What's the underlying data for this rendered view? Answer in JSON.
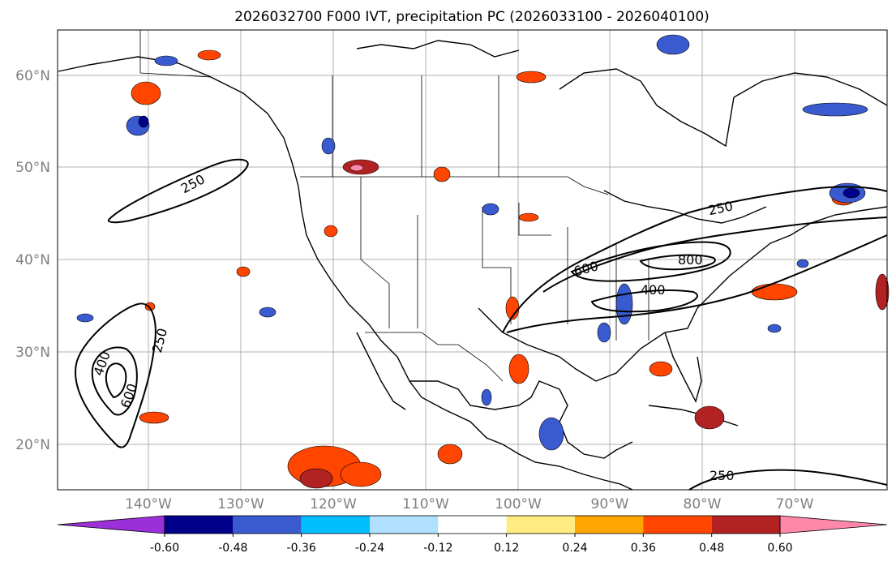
{
  "title": "2026032700 F000 IVT, precipitation PC (2026033100 - 2026040100)",
  "lat_labels": [
    "60°N",
    "50°N",
    "40°N",
    "30°N",
    "20°N"
  ],
  "lon_labels": [
    "140°W",
    "130°W",
    "120°W",
    "110°W",
    "100°W",
    "90°W",
    "80°W",
    "70°W"
  ],
  "contour_labels": [
    "250",
    "250",
    "250",
    "600",
    "800",
    "400",
    "250",
    "400",
    "600",
    "250"
  ],
  "colorbar": {
    "tick_labels": [
      "-0.60",
      "-0.48",
      "-0.36",
      "-0.24",
      "-0.12",
      "0.12",
      "0.24",
      "0.36",
      "0.48",
      "0.60"
    ],
    "colors": [
      "#9b30d9",
      "#00008b",
      "#3a5bd0",
      "#00bfff",
      "#b0e0ff",
      "#ffffff",
      "#ffeb80",
      "#ffa500",
      "#ff4500",
      "#b22222",
      "#ff88aa"
    ]
  },
  "colors": {
    "grid": "#b0b0b0",
    "tick_label": "#808080",
    "coast": "#000000"
  }
}
